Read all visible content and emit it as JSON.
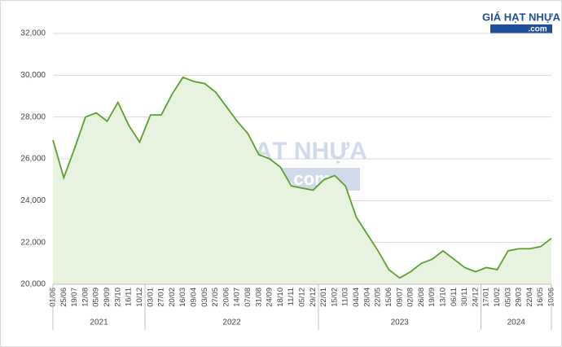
{
  "chart_data": {
    "type": "area",
    "logo": {
      "name": "GIÁ HẠT NHỰA",
      "domain": ".com"
    },
    "watermark": {
      "name": "GIÁ HẠT NHỰA",
      "domain": ".com"
    },
    "color": "#5aa02c",
    "fill": "#e8f3df",
    "ylim": [
      20000,
      32000
    ],
    "yticks": [
      {
        "value": 20000,
        "label": "20,000"
      },
      {
        "value": 22000,
        "label": "22,000"
      },
      {
        "value": 24000,
        "label": "24,000"
      },
      {
        "value": 26000,
        "label": "26,000"
      },
      {
        "value": 28000,
        "label": "28,000"
      },
      {
        "value": 30000,
        "label": "30,000"
      },
      {
        "value": 32000,
        "label": "32,000"
      }
    ],
    "grid": true,
    "groups": [
      {
        "name": "2021",
        "categories": [
          "01/06",
          "25/06",
          "19/07",
          "12/08",
          "05/09",
          "29/09",
          "23/10",
          "16/11",
          "10/12"
        ],
        "values": [
          26900,
          25100,
          26500,
          28000,
          28200,
          27800,
          28700,
          27600,
          26800
        ]
      },
      {
        "name": "2022",
        "categories": [
          "03/01",
          "27/01",
          "20/02",
          "16/03",
          "09/04",
          "03/05",
          "27/05",
          "20/06",
          "14/07",
          "07/08",
          "31/08",
          "24/09",
          "18/10",
          "11/11",
          "05/12",
          "29/12"
        ],
        "values": [
          28100,
          28100,
          29100,
          29900,
          29700,
          29600,
          29200,
          28500,
          27800,
          27200,
          26200,
          26000,
          25600,
          24700,
          24600,
          24500
        ]
      },
      {
        "name": "2023",
        "categories": [
          "22/01",
          "15/02",
          "11/03",
          "04/04",
          "28/04",
          "22/05",
          "15/06",
          "09/07",
          "02/08",
          "26/08",
          "19/09",
          "13/10",
          "06/11",
          "30/11",
          "24/12"
        ],
        "values": [
          25000,
          25200,
          24700,
          23200,
          22400,
          21600,
          20700,
          20300,
          20600,
          21000,
          21200,
          21600,
          21200,
          20800,
          20600
        ]
      },
      {
        "name": "2024",
        "categories": [
          "17/01",
          "10/02",
          "05/03",
          "29/03",
          "22/04",
          "16/05",
          "10/06"
        ],
        "values": [
          20800,
          20700,
          21600,
          21700,
          21700,
          21800,
          22200
        ]
      }
    ]
  }
}
